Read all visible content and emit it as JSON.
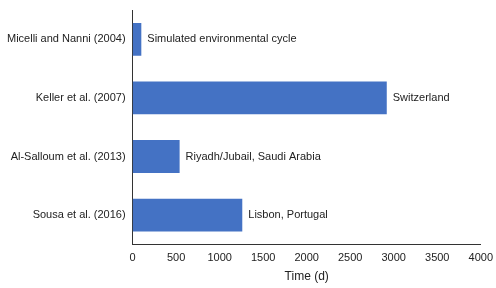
{
  "chart_data": {
    "type": "bar",
    "orientation": "horizontal",
    "categories": [
      "Micelli and Nanni (2004)",
      "Keller et al. (2007)",
      "Al-Salloum et al. (2013)",
      "Sousa et al. (2016)"
    ],
    "values": [
      100,
      2920,
      540,
      1260
    ],
    "annotations": [
      "Simulated environmental cycle",
      "Switzerland",
      "Riyadh/Jubail, Saudi Arabia",
      "Lisbon, Portugal"
    ],
    "x_label": "Time (d)",
    "color": "#4472c4",
    "xlim": [
      0,
      4000
    ],
    "xticks": [
      0,
      500,
      1000,
      1500,
      2000,
      2500,
      3000,
      3500,
      4000
    ],
    "grid": false
  }
}
